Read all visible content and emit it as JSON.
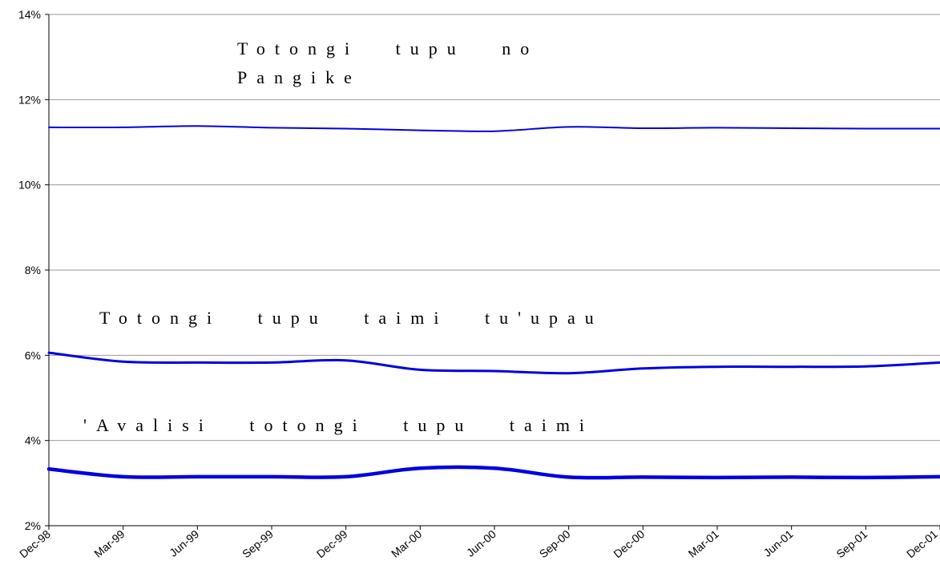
{
  "chart_data": {
    "type": "line",
    "x": [
      "Dec-98",
      "Mar-99",
      "Jun-99",
      "Sep-99",
      "Dec-99",
      "Mar-00",
      "Jun-00",
      "Sep-00",
      "Dec-00",
      "Mar-01",
      "Jun-01",
      "Sep-01",
      "Dec-01"
    ],
    "ylim": [
      0.02,
      0.14
    ],
    "yticks": [
      "2%",
      "4%",
      "6%",
      "8%",
      "10%",
      "12%",
      "14%"
    ],
    "grid": true,
    "legend": "none",
    "series": [
      {
        "name": "Totongi tupu no Pangike",
        "label_lines": [
          "Totongi tupu no",
          "Pangike"
        ],
        "color": "#0000e0",
        "values": [
          0.1135,
          0.1135,
          0.1138,
          0.1134,
          0.1132,
          0.1128,
          0.1126,
          0.1136,
          0.1133,
          0.1134,
          0.1133,
          0.1132,
          0.1132
        ]
      },
      {
        "name": "Totongi tupu taimi tu'upau",
        "label_lines": [
          "Totongi tupu taimi tu'upau"
        ],
        "color": "#0000e0",
        "values": [
          0.0606,
          0.0585,
          0.0583,
          0.0583,
          0.0588,
          0.0566,
          0.0563,
          0.0558,
          0.0569,
          0.0573,
          0.0573,
          0.0574,
          0.0583
        ]
      },
      {
        "name": "'Avalisi totongi tupu taimi",
        "label_lines": [
          "'Avalisi totongi tupu taimi"
        ],
        "color": "#0000e0",
        "values": [
          0.0333,
          0.0315,
          0.0315,
          0.0315,
          0.0315,
          0.0335,
          0.0335,
          0.0314,
          0.0314,
          0.0313,
          0.0314,
          0.0313,
          0.0315
        ]
      }
    ]
  }
}
